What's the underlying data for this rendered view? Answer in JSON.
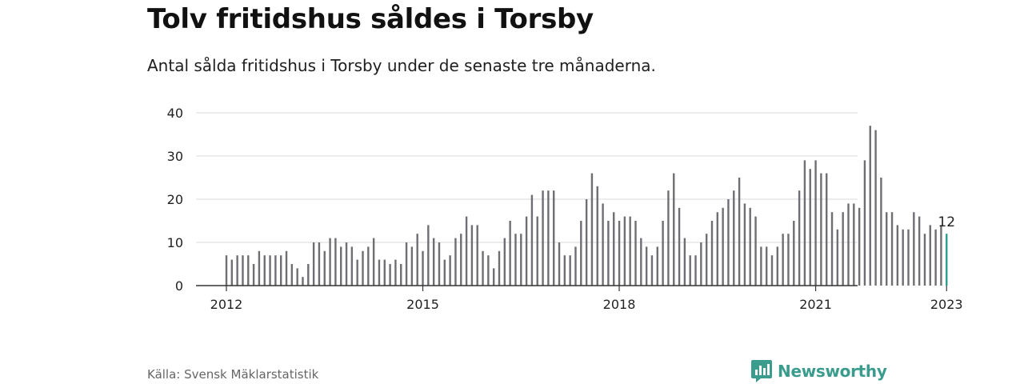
{
  "header": {
    "title": "Tolv fritidshus såldes i Torsby",
    "subtitle": "Antal sålda fritidshus i Torsby under de senaste tre månaderna."
  },
  "footer": {
    "source": "Källa: Svensk Mäklarstatistik",
    "brand": "Newsworthy"
  },
  "colors": {
    "bar": "#6e6e73",
    "highlight": "#2a9d8f",
    "grid": "#d9d9d9",
    "axis": "#333333",
    "brand": "#3a9c8d"
  },
  "icons": {
    "brand_logo": "newsworthy-logo-icon"
  },
  "chart_data": {
    "type": "bar",
    "x_start": "2012-01",
    "x_interval": "month",
    "values": [
      7,
      6,
      7,
      7,
      7,
      5,
      8,
      7,
      7,
      7,
      7,
      8,
      5,
      4,
      2,
      5,
      10,
      10,
      8,
      11,
      11,
      9,
      10,
      9,
      6,
      8,
      9,
      11,
      6,
      6,
      5,
      6,
      5,
      10,
      9,
      12,
      8,
      14,
      11,
      10,
      6,
      7,
      11,
      12,
      16,
      14,
      14,
      8,
      7,
      4,
      8,
      11,
      15,
      12,
      12,
      16,
      21,
      16,
      22,
      22,
      22,
      10,
      7,
      7,
      9,
      15,
      20,
      26,
      23,
      19,
      15,
      17,
      15,
      16,
      16,
      15,
      11,
      9,
      7,
      9,
      15,
      22,
      26,
      18,
      11,
      7,
      7,
      10,
      12,
      15,
      17,
      18,
      20,
      22,
      25,
      19,
      18,
      16,
      9,
      9,
      7,
      9,
      12,
      12,
      15,
      22,
      29,
      27,
      29,
      26,
      26,
      17,
      13,
      17,
      19,
      19,
      18,
      29,
      37,
      36,
      25,
      17,
      17,
      14,
      13,
      13,
      17,
      16,
      12,
      14,
      13,
      14,
      12
    ],
    "highlight_last": true,
    "highlight_label": "12",
    "x_ticks": [
      "2012",
      "2015",
      "2018",
      "2021",
      "2023"
    ],
    "y_ticks": [
      0,
      10,
      20,
      30,
      40
    ],
    "ylim": [
      0,
      40
    ],
    "grid": true,
    "title": "",
    "xlabel": "",
    "ylabel": ""
  }
}
